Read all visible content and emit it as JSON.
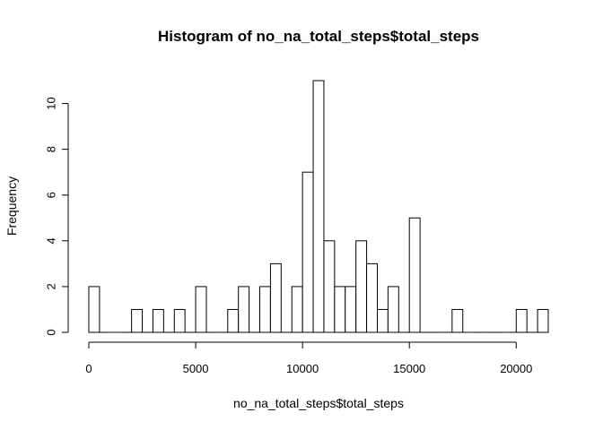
{
  "chart_data": {
    "type": "bar",
    "subtype": "histogram",
    "title": "Histogram of no_na_total_steps$total_steps",
    "xlabel": "no_na_total_steps$total_steps",
    "ylabel": "Frequency",
    "bin_width": 500,
    "x_start": 0,
    "xlim": [
      0,
      21500
    ],
    "ylim": [
      0,
      11
    ],
    "x_ticks": [
      0,
      5000,
      10000,
      15000,
      20000
    ],
    "y_ticks": [
      0,
      2,
      4,
      6,
      8,
      10
    ],
    "grid": false,
    "frequencies": [
      2,
      0,
      0,
      0,
      1,
      0,
      1,
      0,
      1,
      0,
      2,
      0,
      0,
      1,
      2,
      0,
      2,
      3,
      0,
      2,
      7,
      11,
      4,
      2,
      2,
      4,
      3,
      1,
      2,
      0,
      5,
      0,
      0,
      0,
      1,
      0,
      0,
      0,
      0,
      0,
      1,
      0,
      1
    ]
  }
}
